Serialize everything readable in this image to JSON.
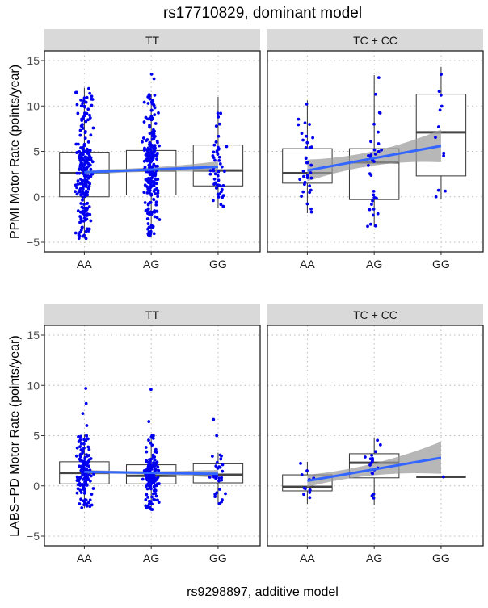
{
  "chart_data": {
    "type": "boxplot",
    "title": "rs17710829, dominant model",
    "xlabel": "rs9298897, additive model",
    "categories": [
      "AA",
      "AG",
      "GG"
    ],
    "yticks": [
      -5,
      0,
      5,
      10,
      15
    ],
    "ylim": [
      -5.6,
      16.1
    ],
    "grid": true,
    "point_color": "#0000ee",
    "trend_color": "#3366ff",
    "rows": [
      {
        "ylabel": "PPMI Motor Rate (points/year)",
        "panels": [
          {
            "strip": "TT",
            "boxes": [
              {
                "cat": "AA",
                "q1": 0,
                "median": 2.6,
                "q3": 4.9,
                "whisker_low": -4.6,
                "whisker_high": 12.0,
                "n": 240,
                "outliers": []
              },
              {
                "cat": "AG",
                "q1": 0.2,
                "median": 2.9,
                "q3": 5.1,
                "whisker_low": -4.4,
                "whisker_high": 11.3,
                "n": 240,
                "outliers": [
                  13.0,
                  13.5
                ]
              },
              {
                "cat": "GG",
                "q1": 1.2,
                "median": 2.9,
                "q3": 5.7,
                "whisker_low": -1.2,
                "whisker_high": 11.0,
                "n": 50,
                "outliers": []
              }
            ],
            "trend": {
              "start": 2.7,
              "end": 3.3,
              "ci_start": 0.3,
              "ci_mid": 0.15,
              "ci_end": 0.6
            }
          },
          {
            "strip": "TC + CC",
            "boxes": [
              {
                "cat": "AA",
                "q1": 1.5,
                "median": 2.6,
                "q3": 5.3,
                "whisker_low": -1.8,
                "whisker_high": 10.6,
                "n": 35,
                "outliers": []
              },
              {
                "cat": "AG",
                "q1": -0.3,
                "median": 3.8,
                "q3": 5.3,
                "whisker_low": -3.3,
                "whisker_high": 13.4,
                "n": 35,
                "outliers": []
              },
              {
                "cat": "GG",
                "q1": 2.3,
                "median": 7.1,
                "q3": 11.3,
                "whisker_low": -0.3,
                "whisker_high": 14.3,
                "n": 12,
                "outliers": []
              }
            ],
            "trend": {
              "start": 2.9,
              "end": 5.6,
              "ci_start": 1.2,
              "ci_mid": 0.4,
              "ci_end": 1.8
            }
          }
        ]
      },
      {
        "ylabel": "LABS−PD Motor Rate (points/year)",
        "panels": [
          {
            "strip": "TT",
            "boxes": [
              {
                "cat": "AA",
                "q1": 0.2,
                "median": 1.3,
                "q3": 2.4,
                "whisker_low": -2.2,
                "whisker_high": 5.1,
                "n": 150,
                "outliers": [
                  6.0,
                  7.2,
                  8.2,
                  9.7
                ]
              },
              {
                "cat": "AG",
                "q1": 0.2,
                "median": 1.0,
                "q3": 2.1,
                "whisker_low": -2.4,
                "whisker_high": 5.0,
                "n": 150,
                "outliers": [
                  6.4,
                  9.6
                ]
              },
              {
                "cat": "GG",
                "q1": 0.3,
                "median": 1.1,
                "q3": 2.2,
                "whisker_low": -1.8,
                "whisker_high": 3.3,
                "n": 30,
                "outliers": [
                  5.0,
                  6.6
                ]
              }
            ],
            "trend": {
              "start": 1.4,
              "end": 1.2,
              "ci_start": 0.2,
              "ci_mid": 0.1,
              "ci_end": 0.4
            }
          },
          {
            "strip": "TC + CC",
            "boxes": [
              {
                "cat": "AA",
                "q1": -0.5,
                "median": -0.1,
                "q3": 1.1,
                "whisker_low": -1.8,
                "whisker_high": 2.4,
                "n": 12,
                "outliers": []
              },
              {
                "cat": "AG",
                "q1": 0.8,
                "median": 2.3,
                "q3": 3.2,
                "whisker_low": -1.9,
                "whisker_high": 4.8,
                "n": 18,
                "outliers": []
              },
              {
                "cat": "GG",
                "q1": 0.9,
                "median": 0.9,
                "q3": 0.9,
                "whisker_low": 0.9,
                "whisker_high": 0.9,
                "n": 1,
                "outliers": []
              }
            ],
            "trend": {
              "start": 0.5,
              "end": 2.8,
              "ci_start": 0.6,
              "ci_mid": 0.4,
              "ci_end": 1.6
            }
          }
        ]
      }
    ]
  }
}
